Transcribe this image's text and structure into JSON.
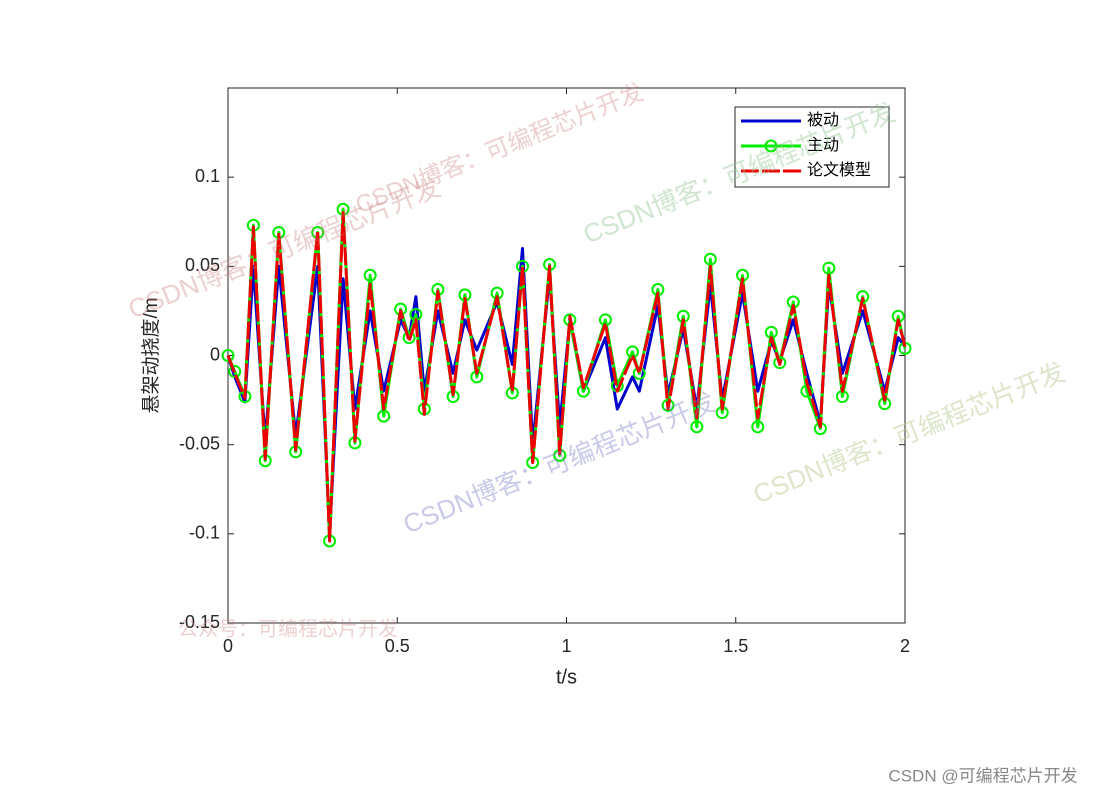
{
  "chart_data": {
    "type": "line",
    "xlabel": "t/s",
    "ylabel": "悬架动挠度/m",
    "x": [
      0,
      0.02,
      0.05,
      0.075,
      0.11,
      0.15,
      0.2,
      0.265,
      0.3,
      0.34,
      0.375,
      0.42,
      0.46,
      0.51,
      0.535,
      0.555,
      0.58,
      0.62,
      0.665,
      0.7,
      0.735,
      0.795,
      0.84,
      0.87,
      0.9,
      0.95,
      0.98,
      1.01,
      1.05,
      1.115,
      1.15,
      1.195,
      1.215,
      1.27,
      1.3,
      1.345,
      1.385,
      1.425,
      1.46,
      1.52,
      1.565,
      1.605,
      1.63,
      1.67,
      1.71,
      1.75,
      1.775,
      1.815,
      1.875,
      1.94,
      1.98,
      2
    ],
    "series": [
      {
        "name": "被动",
        "color": "#0000cd",
        "values": [
          0,
          -0.012,
          -0.026,
          0.05,
          -0.048,
          0.05,
          -0.045,
          0.05,
          -0.1,
          0.043,
          -0.03,
          0.025,
          -0.02,
          0.02,
          0.01,
          0.033,
          -0.02,
          0.025,
          -0.01,
          0.02,
          0.003,
          0.03,
          -0.005,
          0.06,
          -0.05,
          0.045,
          -0.04,
          0.02,
          -0.02,
          0.01,
          -0.03,
          -0.012,
          -0.02,
          0.028,
          -0.022,
          0.015,
          -0.03,
          0.04,
          -0.025,
          0.035,
          -0.02,
          0.008,
          -0.003,
          0.02,
          -0.01,
          -0.038,
          0.04,
          -0.01,
          0.025,
          -0.02,
          0.01,
          0.005
        ]
      },
      {
        "name": "主动",
        "color": "#00ee00",
        "marker": "circle",
        "values": [
          0,
          -0.009,
          -0.023,
          0.073,
          -0.059,
          0.069,
          -0.054,
          0.069,
          -0.104,
          0.082,
          -0.049,
          0.045,
          -0.034,
          0.026,
          0.01,
          0.023,
          -0.03,
          0.037,
          -0.023,
          0.034,
          -0.012,
          0.035,
          -0.021,
          0.05,
          -0.06,
          0.051,
          -0.056,
          0.02,
          -0.02,
          0.02,
          -0.017,
          0.002,
          -0.01,
          0.037,
          -0.028,
          0.022,
          -0.04,
          0.054,
          -0.032,
          0.045,
          -0.04,
          0.013,
          -0.004,
          0.03,
          -0.02,
          -0.041,
          0.049,
          -0.023,
          0.033,
          -0.027,
          0.022,
          0.004
        ]
      },
      {
        "name": "论文模型",
        "color": "#ee0000",
        "dashed": true,
        "values": [
          0,
          -0.01,
          -0.024,
          0.072,
          -0.058,
          0.068,
          -0.053,
          0.07,
          -0.104,
          0.08,
          -0.048,
          0.04,
          -0.03,
          0.025,
          0.008,
          0.02,
          -0.033,
          0.036,
          -0.022,
          0.032,
          -0.01,
          0.033,
          -0.02,
          0.05,
          -0.06,
          0.05,
          -0.055,
          0.022,
          -0.018,
          0.018,
          -0.02,
          0,
          -0.01,
          0.035,
          -0.03,
          0.02,
          -0.035,
          0.05,
          -0.03,
          0.043,
          -0.035,
          0.01,
          -0.005,
          0.028,
          -0.015,
          -0.04,
          0.045,
          -0.02,
          0.032,
          -0.025,
          0.02,
          0.005
        ]
      }
    ],
    "xlim": [
      0,
      2
    ],
    "xticks": [
      0,
      0.5,
      1,
      1.5,
      2
    ],
    "ylim": [
      -0.15,
      0.15
    ],
    "yticks": [
      -0.15,
      -0.1,
      -0.05,
      0,
      0.05,
      0.1
    ],
    "legend": "northeast",
    "grid": false,
    "watermarks": [
      "CSDN博客：可编程芯片开发",
      "CSDN博客：可编程芯片开发",
      "CSDN博客：可编程芯片开发",
      "CSDN博客：可编程芯片开发",
      "CSDN博客：可编程芯片开发",
      "公众号：可编程芯片开发",
      "CSDN @可编程芯片开发"
    ]
  }
}
